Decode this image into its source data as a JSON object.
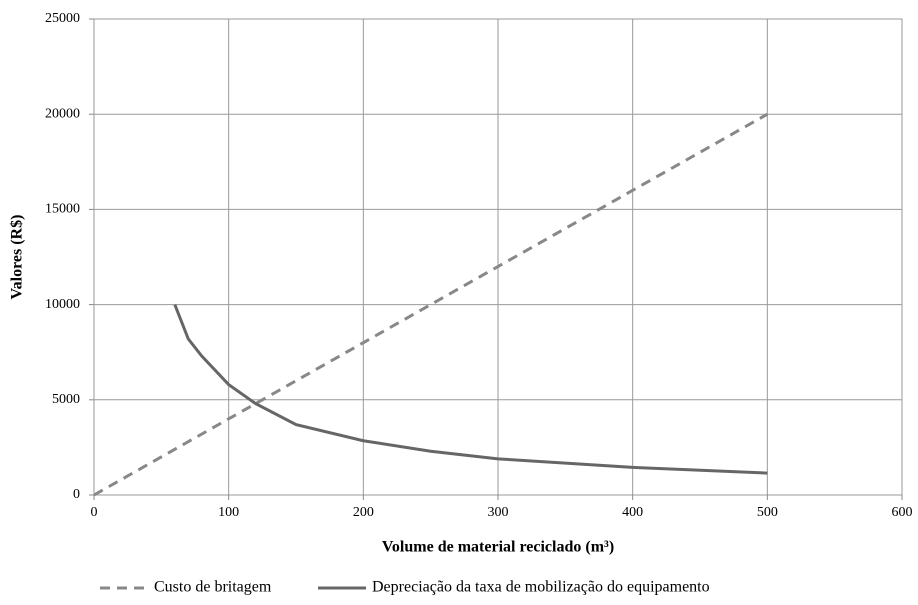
{
  "chart_data": {
    "type": "line",
    "x_label": "Volume de material reciclado (m³)",
    "y_label": "Valores (R$)",
    "xlim": [
      0,
      600
    ],
    "xticks": [
      0,
      100,
      200,
      300,
      400,
      500,
      600
    ],
    "ylim": [
      0,
      25000
    ],
    "yticks": [
      0,
      5000,
      10000,
      15000,
      20000,
      25000
    ],
    "grid": true,
    "legend": "bottom",
    "series": [
      {
        "name": "Custo de britagem",
        "color": "#888888",
        "dash": true,
        "x": [
          0,
          100,
          200,
          300,
          400,
          500
        ],
        "values": [
          0,
          4000,
          8000,
          12000,
          16000,
          20000
        ]
      },
      {
        "name": "Depreciação da taxa de mobilização  do equipamento",
        "color": "#666666",
        "dash": false,
        "x": [
          60,
          70,
          80,
          100,
          120,
          150,
          200,
          250,
          300,
          400,
          500
        ],
        "values": [
          10000,
          8200,
          7300,
          5800,
          4800,
          3700,
          2850,
          2300,
          1900,
          1450,
          1150
        ]
      }
    ]
  }
}
